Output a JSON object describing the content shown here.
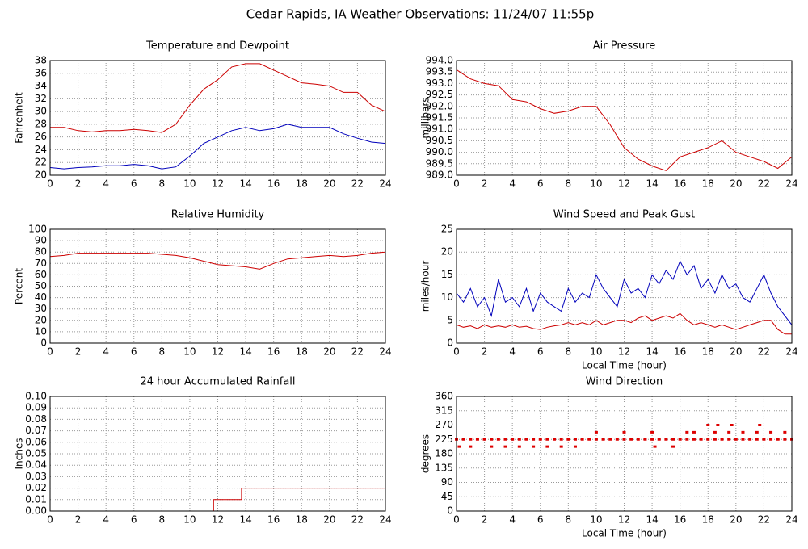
{
  "title": "Cedar Rapids, IA Weather Observations: 11/24/07 11:55p",
  "chart_data": [
    {
      "type": "line",
      "title": "Temperature and Dewpoint",
      "ylabel": "Fahrenheit",
      "x": [
        0,
        1,
        2,
        3,
        4,
        5,
        6,
        7,
        8,
        9,
        10,
        11,
        12,
        13,
        14,
        15,
        16,
        17,
        18,
        19,
        20,
        21,
        22,
        23,
        24
      ],
      "series": [
        {
          "color": "#cc0000",
          "values": [
            27.5,
            27.5,
            27,
            26.8,
            27,
            27,
            27.2,
            27,
            26.7,
            28,
            31,
            33.5,
            35,
            37,
            37.5,
            37.5,
            36.5,
            35.5,
            34.5,
            34.3,
            34,
            33,
            33,
            31,
            30
          ]
        },
        {
          "color": "#0000bb",
          "values": [
            21.2,
            21,
            21.2,
            21.3,
            21.5,
            21.5,
            21.7,
            21.5,
            21,
            21.3,
            23,
            25,
            26,
            27,
            27.5,
            27,
            27.3,
            28,
            27.5,
            27.5,
            27.5,
            26.5,
            25.8,
            25.2,
            25
          ]
        }
      ],
      "xlim": [
        0,
        24
      ],
      "ylim": [
        20,
        38
      ],
      "xticks": [
        0,
        2,
        4,
        6,
        8,
        10,
        12,
        14,
        16,
        18,
        20,
        22,
        24
      ],
      "yticks": [
        20,
        22,
        24,
        26,
        28,
        30,
        32,
        34,
        36,
        38
      ],
      "grid": true
    },
    {
      "type": "line",
      "title": "Air Pressure",
      "ylabel": "millibars",
      "x": [
        0,
        1,
        2,
        3,
        4,
        5,
        6,
        7,
        8,
        9,
        10,
        11,
        12,
        13,
        14,
        15,
        16,
        17,
        18,
        19,
        20,
        21,
        22,
        23,
        24
      ],
      "series": [
        {
          "color": "#cc0000",
          "values": [
            993.6,
            993.2,
            993.0,
            992.9,
            992.3,
            992.2,
            991.9,
            991.7,
            991.8,
            992.0,
            992.0,
            991.2,
            990.2,
            989.7,
            989.4,
            989.2,
            989.8,
            990.0,
            990.2,
            990.5,
            990.0,
            989.8,
            989.6,
            989.3,
            989.8
          ]
        }
      ],
      "xlim": [
        0,
        24
      ],
      "ylim": [
        989,
        994
      ],
      "xticks": [
        0,
        2,
        4,
        6,
        8,
        10,
        12,
        14,
        16,
        18,
        20,
        22,
        24
      ],
      "yticks": [
        {
          "value": 989,
          "label": "989.0"
        },
        989.5,
        {
          "value": 990,
          "label": "990.0"
        },
        990.5,
        {
          "value": 991,
          "label": "991.0"
        },
        991.5,
        {
          "value": 992,
          "label": "992.0"
        },
        992.5,
        {
          "value": 993,
          "label": "993.0"
        },
        993.5,
        {
          "value": 994,
          "label": "994.0"
        }
      ],
      "grid": true
    },
    {
      "type": "line",
      "title": "Relative Humidity",
      "ylabel": "Percent",
      "x": [
        0,
        1,
        2,
        3,
        4,
        5,
        6,
        7,
        8,
        9,
        10,
        11,
        12,
        13,
        14,
        15,
        16,
        17,
        18,
        19,
        20,
        21,
        22,
        23,
        24
      ],
      "series": [
        {
          "color": "#cc0000",
          "values": [
            76,
            77,
            79,
            79,
            79,
            79,
            79,
            79,
            78,
            77,
            75,
            72,
            69,
            68,
            67,
            65,
            70,
            74,
            75,
            76,
            77,
            76,
            77,
            79,
            80
          ]
        }
      ],
      "xlim": [
        0,
        24
      ],
      "ylim": [
        0,
        100
      ],
      "xticks": [
        0,
        2,
        4,
        6,
        8,
        10,
        12,
        14,
        16,
        18,
        20,
        22,
        24
      ],
      "yticks": [
        0,
        10,
        20,
        30,
        40,
        50,
        60,
        70,
        80,
        90,
        100
      ],
      "grid": true
    },
    {
      "type": "line",
      "title": "Wind Speed and Peak Gust",
      "ylabel": "miles/hour",
      "xlabel": "Local Time (hour)",
      "x": [
        0,
        0.5,
        1,
        1.5,
        2,
        2.5,
        3,
        3.5,
        4,
        4.5,
        5,
        5.5,
        6,
        6.5,
        7,
        7.5,
        8,
        8.5,
        9,
        9.5,
        10,
        10.5,
        11,
        11.5,
        12,
        12.5,
        13,
        13.5,
        14,
        14.5,
        15,
        15.5,
        16,
        16.5,
        17,
        17.5,
        18,
        18.5,
        19,
        19.5,
        20,
        20.5,
        21,
        21.5,
        22,
        22.5,
        23,
        23.5,
        24
      ],
      "series": [
        {
          "color": "#0000bb",
          "values": [
            11,
            9,
            12,
            8,
            10,
            6,
            14,
            9,
            10,
            8,
            12,
            7,
            11,
            9,
            8,
            7,
            12,
            9,
            11,
            10,
            15,
            12,
            10,
            8,
            14,
            11,
            12,
            10,
            15,
            13,
            16,
            14,
            18,
            15,
            17,
            12,
            14,
            11,
            15,
            12,
            13,
            10,
            9,
            12,
            15,
            11,
            8,
            6,
            4
          ]
        },
        {
          "color": "#cc0000",
          "values": [
            4,
            3.5,
            3.8,
            3.2,
            4,
            3.5,
            3.8,
            3.5,
            4,
            3.5,
            3.7,
            3.2,
            3,
            3.5,
            3.8,
            4,
            4.5,
            4,
            4.5,
            4,
            5,
            4,
            4.5,
            5,
            5,
            4.5,
            5.5,
            6,
            5,
            5.5,
            6,
            5.5,
            6.5,
            5,
            4,
            4.5,
            4,
            3.5,
            4,
            3.5,
            3,
            3.5,
            4,
            4.5,
            5,
            5,
            3,
            2,
            2
          ]
        }
      ],
      "xlim": [
        0,
        24
      ],
      "ylim": [
        0,
        25
      ],
      "xticks": [
        0,
        2,
        4,
        6,
        8,
        10,
        12,
        14,
        16,
        18,
        20,
        22,
        24
      ],
      "yticks": [
        0,
        5,
        10,
        15,
        20,
        25
      ],
      "grid": true
    },
    {
      "type": "line",
      "title": "24 hour Accumulated Rainfall",
      "ylabel": "Inches",
      "x": [
        0,
        11.7,
        11.7,
        13.7,
        13.7,
        24
      ],
      "series": [
        {
          "color": "#cc0000",
          "values": [
            0,
            0,
            0.01,
            0.01,
            0.02,
            0.02
          ]
        }
      ],
      "xlim": [
        0,
        24
      ],
      "ylim": [
        0,
        0.1
      ],
      "xticks": [
        0,
        2,
        4,
        6,
        8,
        10,
        12,
        14,
        16,
        18,
        20,
        22,
        24
      ],
      "yticks": [
        {
          "value": 0,
          "label": "0.00"
        },
        {
          "value": 0.01,
          "label": "0.01"
        },
        {
          "value": 0.02,
          "label": "0.02"
        },
        {
          "value": 0.03,
          "label": "0.03"
        },
        {
          "value": 0.04,
          "label": "0.04"
        },
        {
          "value": 0.05,
          "label": "0.05"
        },
        {
          "value": 0.06,
          "label": "0.06"
        },
        {
          "value": 0.07,
          "label": "0.07"
        },
        {
          "value": 0.08,
          "label": "0.08"
        },
        {
          "value": 0.09,
          "label": "0.09"
        },
        {
          "value": 0.1,
          "label": "0.10"
        }
      ],
      "grid": true
    },
    {
      "type": "scatter",
      "title": "Wind Direction",
      "ylabel": "degrees",
      "xlabel": "Local Time (hour)",
      "x": [
        0,
        0.5,
        1,
        1.5,
        2,
        2.5,
        3,
        3.5,
        4,
        4.5,
        5,
        5.5,
        6,
        6.5,
        7,
        7.5,
        8,
        8.5,
        9,
        9.5,
        10,
        10.5,
        11,
        11.5,
        12,
        12.5,
        13,
        13.5,
        14,
        14.5,
        15,
        15.5,
        16,
        16.5,
        17,
        17.5,
        18,
        18.5,
        19,
        19.5,
        20,
        20.5,
        21,
        21.5,
        22,
        22.5,
        23,
        23.5,
        24,
        0.2,
        1,
        2.5,
        3.5,
        4.5,
        5.5,
        6.5,
        7.5,
        8.5,
        10,
        12,
        14,
        16.5,
        17,
        18.5,
        19.5,
        20.5,
        21.5,
        22.5,
        23.5,
        18,
        18.7,
        19.7,
        21.7,
        14.2,
        15.5
      ],
      "series": [
        {
          "color": "#dd0000",
          "values": [
            225,
            225,
            225,
            225,
            225,
            225,
            225,
            225,
            225,
            225,
            225,
            225,
            225,
            225,
            225,
            225,
            225,
            225,
            225,
            225,
            225,
            225,
            225,
            225,
            225,
            225,
            225,
            225,
            225,
            225,
            225,
            225,
            225,
            225,
            225,
            225,
            225,
            225,
            225,
            225,
            225,
            225,
            225,
            225,
            225,
            225,
            225,
            225,
            225,
            202.5,
            202.5,
            202.5,
            202.5,
            202.5,
            202.5,
            202.5,
            202.5,
            202.5,
            247.5,
            247.5,
            247.5,
            247.5,
            247.5,
            247.5,
            247.5,
            247.5,
            247.5,
            247.5,
            247.5,
            270,
            270,
            270,
            270,
            202.5,
            202.5
          ]
        }
      ],
      "xlim": [
        0,
        24
      ],
      "ylim": [
        0,
        360
      ],
      "xticks": [
        0,
        2,
        4,
        6,
        8,
        10,
        12,
        14,
        16,
        18,
        20,
        22,
        24
      ],
      "yticks": [
        0,
        45,
        90,
        135,
        180,
        225,
        270,
        315,
        360
      ],
      "grid": true
    }
  ]
}
